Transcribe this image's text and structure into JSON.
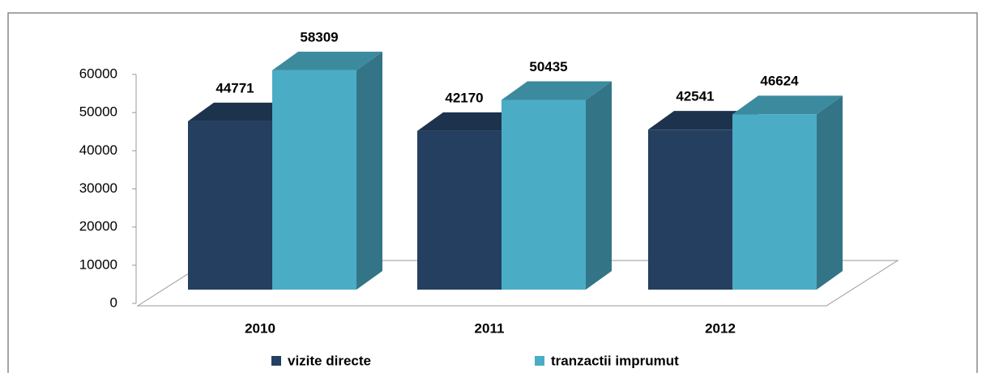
{
  "chart_data": {
    "type": "bar3d",
    "categories": [
      "2010",
      "2011",
      "2012"
    ],
    "series": [
      {
        "name": "vizite directe",
        "color": "#243f60",
        "values": [
          44771,
          42170,
          42541
        ]
      },
      {
        "name": "tranzactii imprumut",
        "color": "#4bacc6",
        "values": [
          58309,
          50435,
          46624
        ]
      }
    ],
    "ylim": [
      0,
      60000
    ],
    "yticks": [
      0,
      10000,
      20000,
      30000,
      40000,
      50000,
      60000
    ],
    "legend": "bottom"
  }
}
